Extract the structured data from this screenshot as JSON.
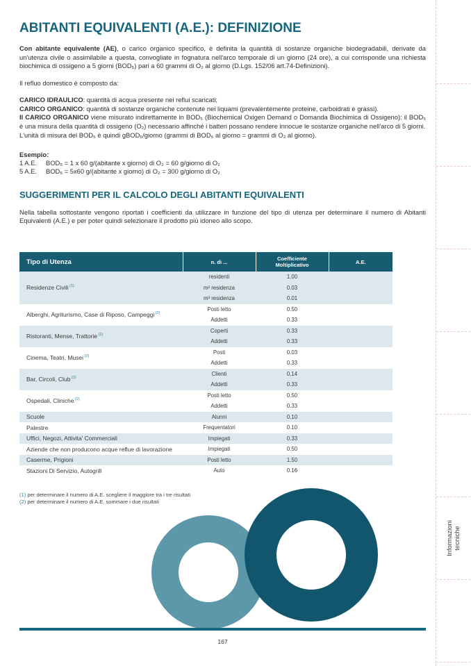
{
  "colors": {
    "accent_teal": "#15657E",
    "header_bg": "#175C70",
    "row_shaded": "#DCE8EE",
    "note_teal": "#2E7F9E",
    "donut_large": "#11566C",
    "donut_small": "#5D97AA",
    "rule": "#17677C",
    "dashed_pink": "#EAC6D0"
  },
  "title": "ABITANTI EQUIVALENTI (A.E.): DEFINIZIONE",
  "intro": {
    "bold": "Con abitante equivalente (AE)",
    "rest": ", o carico organico specifico, è definita la quantità di sostanze organiche biodegradabili, derivate da un'utenza civile o assimilabile a questa, convogliate in fognatura nell'arco temporale di un giorno (24 ore), a cui corrisponde una richiesta biochimica di ossigeno a 5 giorni (BOD₅) pari a 60 grammi di O₂ al giorno (D.Lgs. 152/06 art.74-Definizioni)."
  },
  "refluo": "Il refluo domestico è composto da:",
  "carico": {
    "lines": [
      {
        "bold": "CARICO IDRAULICO",
        "rest": ": quantità di acqua presente nei reflui scaricati;"
      },
      {
        "bold": "CARICO ORGANICO",
        "rest": ": quantità di sostanze organiche contenute nei liquami (prevalentemente proteine, carboidrati e grassi)."
      },
      {
        "bold": "Il CARICO ORGANICO",
        "rest": " viene misurato indirettamente in BOD₅ (Biochemical Oxigen Demand o Domanda Biochimica di Ossigeno): il BOD₅ è una misura della quantità di ossigeno (O₂) necessario affinché i batteri possano rendere innocue le sostanze organiche nell'arco di 5 giorni."
      },
      {
        "bold": "",
        "rest": "L'unità di misura del BOD₅ è quindi gBOD₅/giorno (grammi di BOD₅ al giorno = grammi di O₂ al giorno)."
      }
    ]
  },
  "esempio": {
    "label": "Esempio:",
    "rows": [
      {
        "n": "1 A.E.",
        "f": "BOD₅ = 1 x 60 g/(abitante x giorno) di O₂ = 60 g/giorno di O₂"
      },
      {
        "n": "5 A.E.",
        "f": "BOD₅ = 5x60 g/(abitante x giorno) di O₂ = 300 g/giorno di O₂"
      }
    ]
  },
  "heading2": "SUGGERIMENTI PER IL CALCOLO DEGLI ABITANTI EQUIVALENTI",
  "tabella_intro": "Nella tabella sottostante vengono riportati i coefficienti da utilizzare in funzione del tipo di utenza per determinare il numero di Abitanti Equivalenti (A.E.) e per poter quindi selezionare il prodotto più idoneo allo scopo.",
  "table": {
    "headers": {
      "utenza": "Tipo di Utenza",
      "n_di": "n. di ...",
      "coeff_line1": "Coefficiente",
      "coeff_line2": "Moltiplicativo",
      "ae": "A.E."
    },
    "groups": [
      {
        "name": "Residenze Civili",
        "note": "(1)",
        "rows": [
          {
            "unit": "residenti",
            "coeff": "1.00"
          },
          {
            "unit": "m² residenza",
            "coeff": "0.03"
          },
          {
            "unit": "m³ residenza",
            "coeff": "0.01"
          }
        ]
      },
      {
        "name": "Alberghi, Agriturismo, Case di Riposo, Campeggi",
        "note": "(2)",
        "rows": [
          {
            "unit": "Posti letto",
            "coeff": "0.50"
          },
          {
            "unit": "Addetti",
            "coeff": "0.33"
          }
        ]
      },
      {
        "name": "Ristoranti, Mense, Trattorie",
        "note": "(2)",
        "rows": [
          {
            "unit": "Coperti",
            "coeff": "0.33"
          },
          {
            "unit": "Addetti",
            "coeff": "0.33"
          }
        ]
      },
      {
        "name": "Cinema, Teatri, Musei",
        "note": "(2)",
        "rows": [
          {
            "unit": "Posti",
            "coeff": "0.03"
          },
          {
            "unit": "Addetti",
            "coeff": "0.33"
          }
        ]
      },
      {
        "name": "Bar, Circoli, Club",
        "note": "(2)",
        "rows": [
          {
            "unit": "Clienti",
            "coeff": "0.14"
          },
          {
            "unit": "Addetti",
            "coeff": "0.33"
          }
        ]
      },
      {
        "name": "Ospedali, Cliniche",
        "note": "(2)",
        "rows": [
          {
            "unit": "Posti letto",
            "coeff": "0.50"
          },
          {
            "unit": "Addetti",
            "coeff": "0.33"
          }
        ]
      },
      {
        "name": "Scuole",
        "note": "",
        "rows": [
          {
            "unit": "Alunni",
            "coeff": "0.10"
          }
        ]
      },
      {
        "name": "Palestre",
        "note": "",
        "rows": [
          {
            "unit": "Frequentatori",
            "coeff": "0.10"
          }
        ]
      },
      {
        "name": "Uffici, Negozi, Attivita' Commerciali",
        "note": "",
        "rows": [
          {
            "unit": "Impiegati",
            "coeff": "0.33"
          }
        ]
      },
      {
        "name": "Aziende che non producono acque reflue di lavorazione",
        "note": "",
        "rows": [
          {
            "unit": "Impiegati",
            "coeff": "0.50"
          }
        ]
      },
      {
        "name": "Caserme, Prigioni",
        "note": "",
        "rows": [
          {
            "unit": "Posti letto",
            "coeff": "1.50"
          }
        ]
      },
      {
        "name": "Stazioni Di Servizio, Autogrill",
        "note": "",
        "rows": [
          {
            "unit": "Auto",
            "coeff": "0.16"
          }
        ]
      }
    ]
  },
  "footnotes": [
    {
      "marker": "(1)",
      "text": " per determinare il numero di A.E. scegliere il maggiore tra i tre risultati"
    },
    {
      "marker": "(2)",
      "text": " per determinare il numero di A.E. sommare i due risultati"
    }
  ],
  "page_number": "167",
  "sidebar": {
    "cells": [
      "",
      "",
      "",
      "",
      "",
      "",
      "Informazioni\ntecniche",
      ""
    ]
  }
}
